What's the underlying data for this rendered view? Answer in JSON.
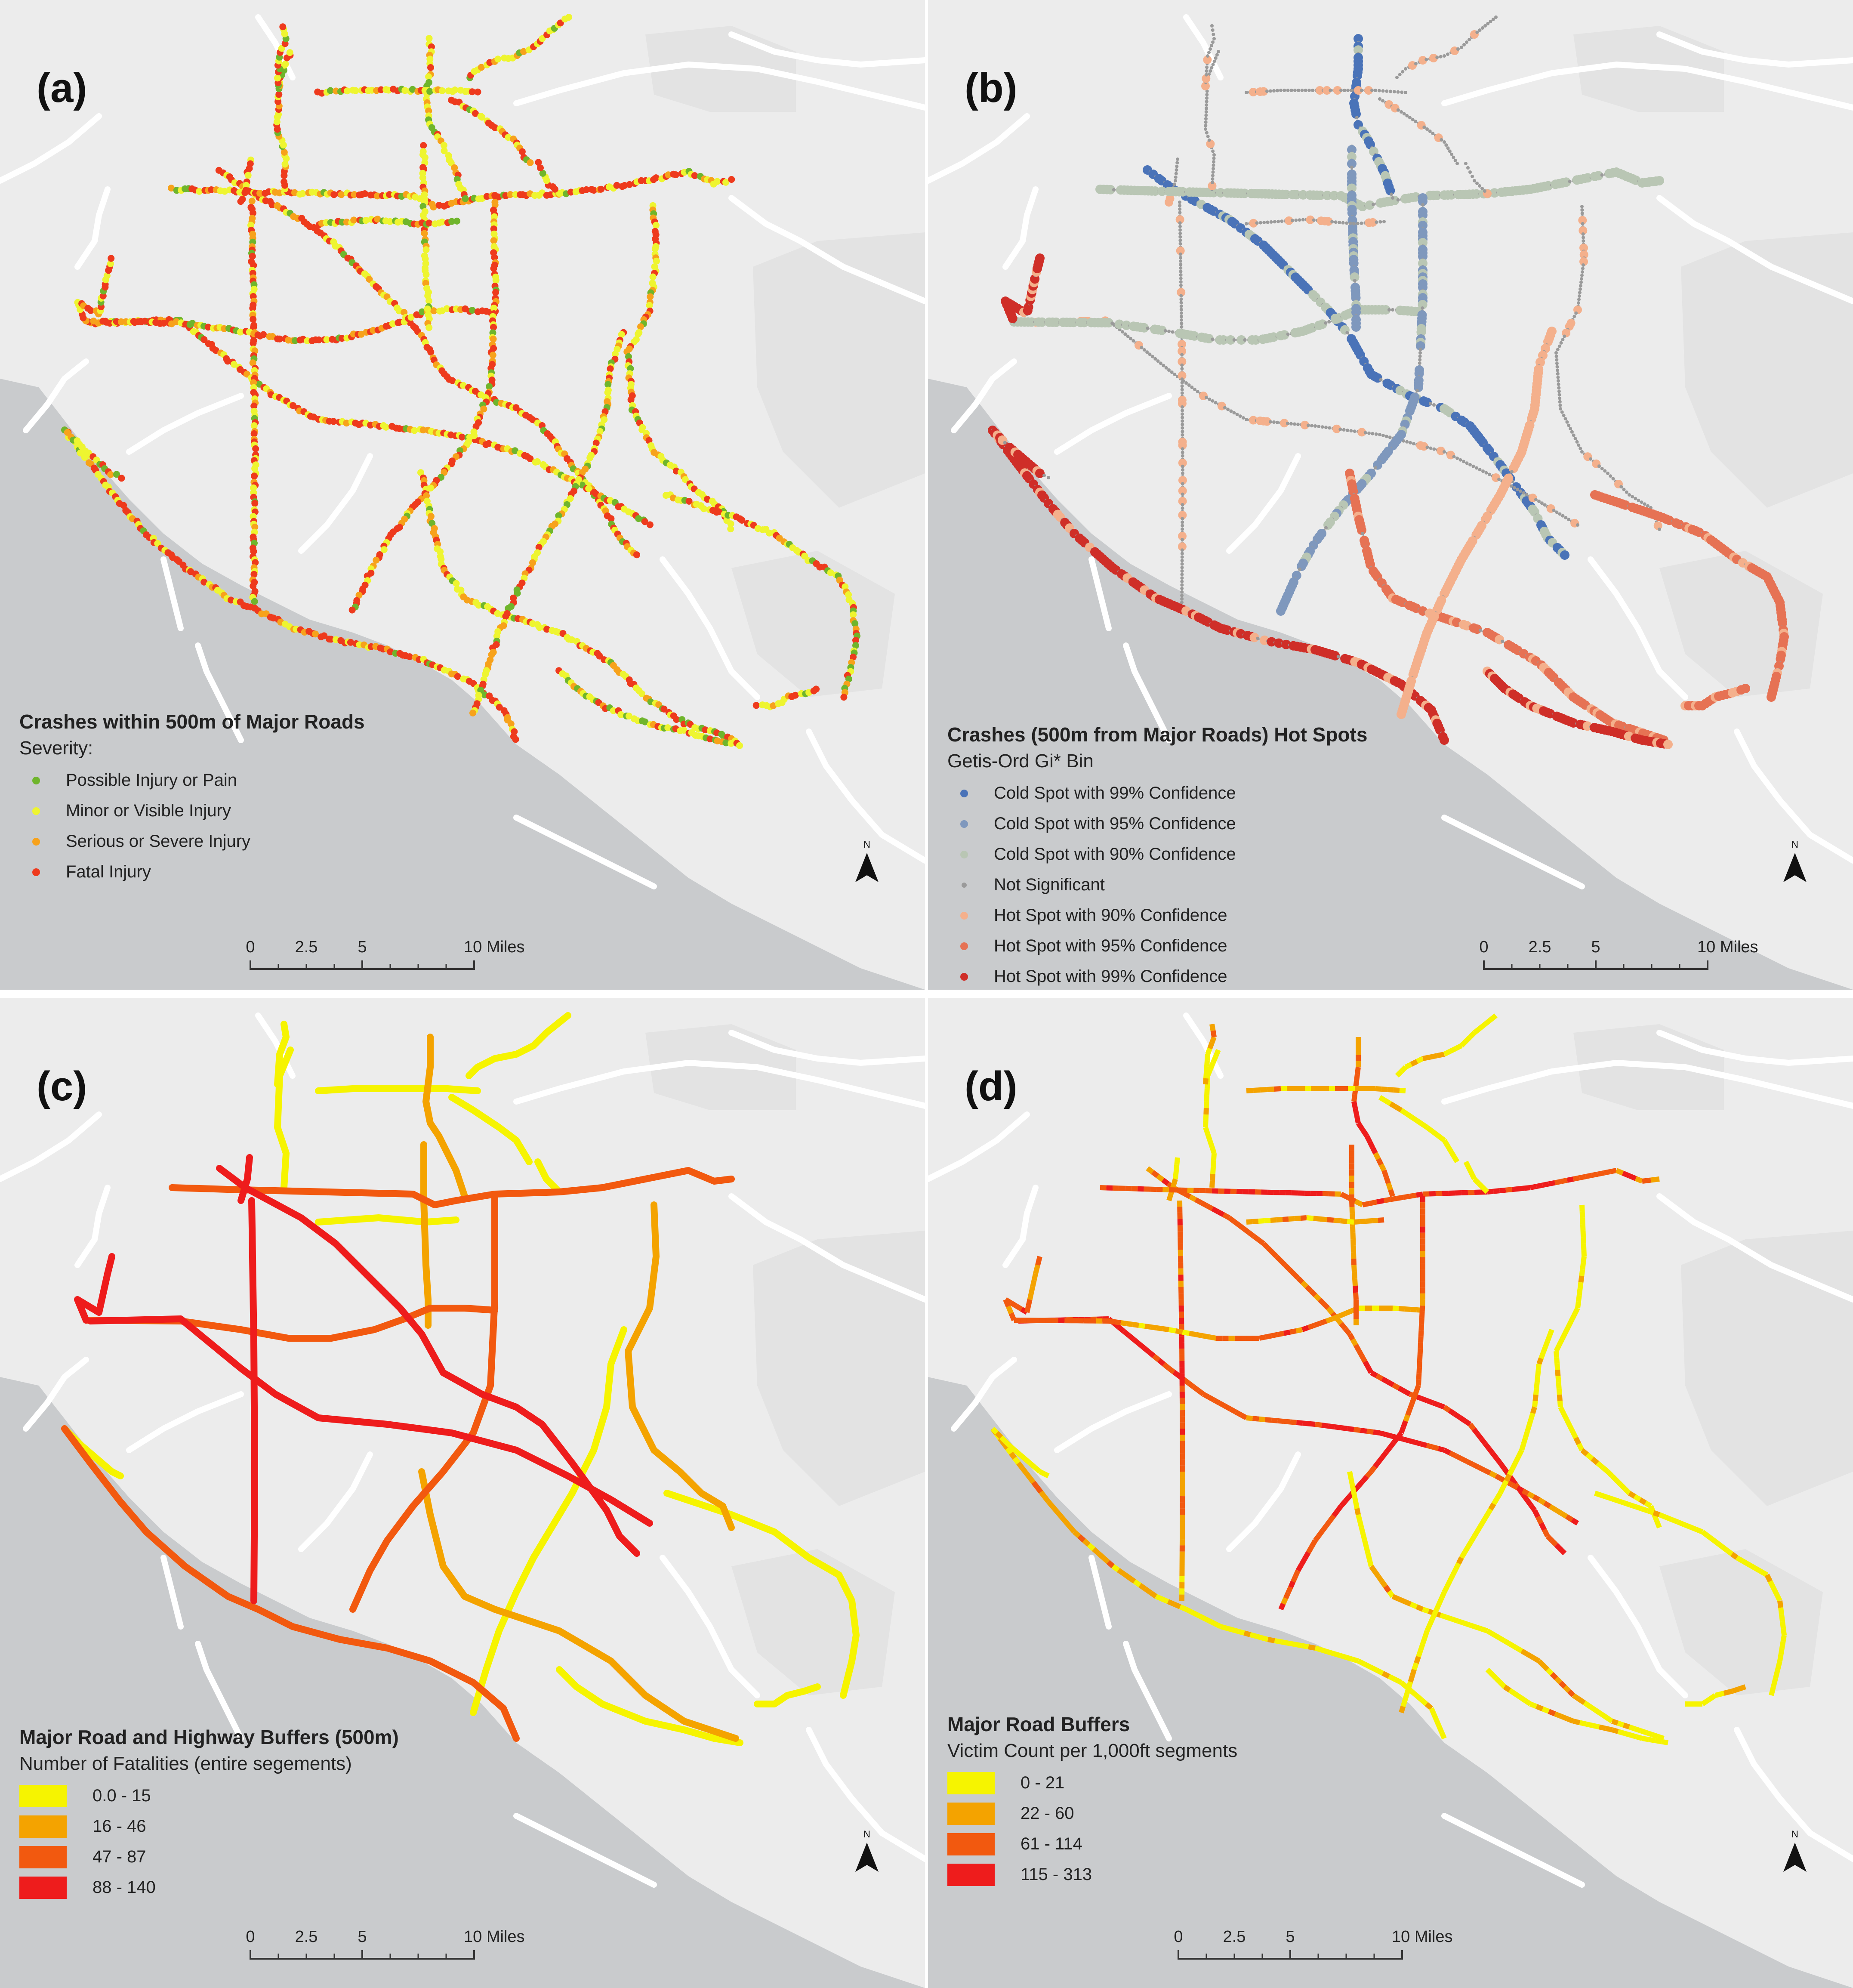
{
  "colors": {
    "land": "#ececec",
    "water": "#c9cbcd",
    "context_road": "#ffffff",
    "severity_possible": "#6fb52c",
    "severity_minor": "#eef530",
    "severity_serious": "#f7a21b",
    "severity_fatal": "#ee3a1d",
    "cold99": "#4a73b8",
    "cold95": "#7f98bd",
    "cold90": "#b9c6b4",
    "not_sig": "#9a9a9a",
    "hot90": "#f4b08c",
    "hot95": "#e67254",
    "hot99": "#cf2e28",
    "class1": "#f6f400",
    "class2": "#f4a300",
    "class3": "#f2590f",
    "class4": "#ee1c1c"
  },
  "panels": [
    {
      "label": "(a)",
      "legend": {
        "title": "Crashes within 500m of Major Roads",
        "subtitle": "Severity:",
        "items": [
          {
            "label": "Possible Injury or Pain",
            "color": "#6fb52c"
          },
          {
            "label": "Minor or Visible Injury",
            "color": "#eef530"
          },
          {
            "label": "Serious or Severe Injury",
            "color": "#f7a21b"
          },
          {
            "label": "Fatal Injury",
            "color": "#ee3a1d"
          }
        ]
      },
      "scale": {
        "ticks": [
          "0",
          "2.5",
          "5"
        ],
        "end": "10",
        "unit": "Miles"
      },
      "north": "N"
    },
    {
      "label": "(b)",
      "legend": {
        "title": "Crashes (500m from Major Roads) Hot Spots",
        "subtitle": "Getis-Ord Gi* Bin",
        "items": [
          {
            "label": "Cold Spot with 99% Confidence",
            "color": "#4a73b8"
          },
          {
            "label": "Cold Spot with 95% Confidence",
            "color": "#7f98bd"
          },
          {
            "label": "Cold Spot with 90% Confidence",
            "color": "#b9c6b4"
          },
          {
            "label": "Not Significant",
            "color": "#9a9a9a"
          },
          {
            "label": "Hot Spot with 90% Confidence",
            "color": "#f4b08c"
          },
          {
            "label": "Hot Spot with 95% Confidence",
            "color": "#e67254"
          },
          {
            "label": "Hot Spot with 99% Confidence",
            "color": "#cf2e28"
          }
        ]
      },
      "scale": {
        "ticks": [
          "0",
          "2.5",
          "5"
        ],
        "end": "10",
        "unit": "Miles"
      },
      "north": "N"
    },
    {
      "label": "(c)",
      "legend": {
        "title": "Major Road and Highway Buffers (500m)",
        "subtitle": "Number of Fatalities (entire segements)",
        "items": [
          {
            "label": "0.0 - 15",
            "color": "#f6f400"
          },
          {
            "label": "16 - 46",
            "color": "#f4a300"
          },
          {
            "label": "47 - 87",
            "color": "#f2590f"
          },
          {
            "label": "88 - 140",
            "color": "#ee1c1c"
          }
        ]
      },
      "scale": {
        "ticks": [
          "0",
          "2.5",
          "5"
        ],
        "end": "10",
        "unit": "Miles"
      },
      "north": "N"
    },
    {
      "label": "(d)",
      "legend": {
        "title": "Major Road Buffers",
        "subtitle": "Victim Count per 1,000ft segments",
        "items": [
          {
            "label": "0 - 21",
            "color": "#f6f400"
          },
          {
            "label": "22 - 60",
            "color": "#f4a300"
          },
          {
            "label": "61 - 114",
            "color": "#f2590f"
          },
          {
            "label": "115 - 313",
            "color": "#ee1c1c"
          }
        ]
      },
      "scale": {
        "ticks": [
          "0",
          "2.5",
          "5"
        ],
        "end": "10",
        "unit": "Miles"
      },
      "north": "N"
    }
  ]
}
